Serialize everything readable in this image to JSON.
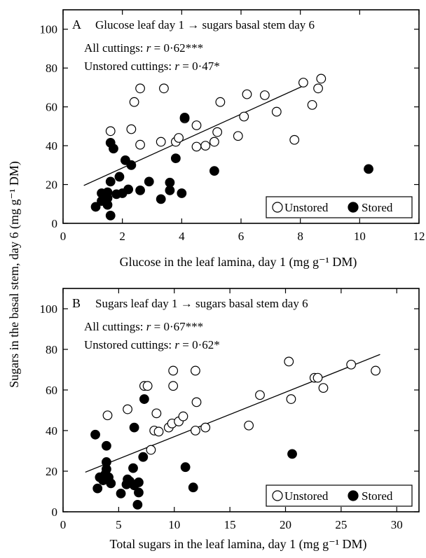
{
  "ylabel": "Sugars in the basal stem, day 6 (mg g⁻¹ DM)",
  "legend": {
    "unstored": "Unstored",
    "stored": "Stored"
  },
  "chart_data": [
    {
      "type": "scatter",
      "panel": "A",
      "title": "Glucose leaf day 1 → sugars basal stem day 6",
      "annotations": [
        "All cuttings: r = 0·62***",
        "Unstored cuttings: r = 0·47*"
      ],
      "xlabel": "Glucose in the leaf lamina, day 1 (mg g⁻¹ DM)",
      "xlim": [
        0,
        12
      ],
      "ylim": [
        0,
        110
      ],
      "xticks": [
        0,
        2,
        4,
        6,
        8,
        10,
        12
      ],
      "yticks": [
        0,
        20,
        40,
        60,
        80,
        100
      ],
      "legend_position": "bottom-right",
      "fit_line": {
        "x": [
          0.7,
          8.2
        ],
        "y": [
          19.5,
          71.5
        ]
      },
      "series": [
        {
          "name": "Unstored",
          "marker": "open-circle",
          "points": [
            [
              1.6,
              47.5
            ],
            [
              2.3,
              48.5
            ],
            [
              2.4,
              62.5
            ],
            [
              2.6,
              69.5
            ],
            [
              2.6,
              40.5
            ],
            [
              3.3,
              42
            ],
            [
              3.4,
              69.5
            ],
            [
              3.8,
              42
            ],
            [
              3.9,
              44
            ],
            [
              4.1,
              54
            ],
            [
              4.5,
              50.5
            ],
            [
              4.5,
              39.5
            ],
            [
              4.8,
              40
            ],
            [
              5.1,
              42
            ],
            [
              5.2,
              47
            ],
            [
              5.3,
              62.5
            ],
            [
              5.9,
              45
            ],
            [
              6.1,
              55
            ],
            [
              6.2,
              66.5
            ],
            [
              6.8,
              66
            ],
            [
              7.2,
              57.5
            ],
            [
              7.8,
              43
            ],
            [
              8.1,
              72.5
            ],
            [
              8.4,
              61
            ],
            [
              8.6,
              69.5
            ],
            [
              8.7,
              74.5
            ]
          ]
        },
        {
          "name": "Stored",
          "marker": "filled-circle",
          "points": [
            [
              1.1,
              8.5
            ],
            [
              1.3,
              11.5
            ],
            [
              1.3,
              15.5
            ],
            [
              1.4,
              14.5
            ],
            [
              1.5,
              13
            ],
            [
              1.5,
              9.5
            ],
            [
              1.5,
              16
            ],
            [
              1.6,
              21.5
            ],
            [
              1.6,
              4
            ],
            [
              1.6,
              41.5
            ],
            [
              1.7,
              38.5
            ],
            [
              1.8,
              15
            ],
            [
              1.9,
              24
            ],
            [
              2.0,
              15.5
            ],
            [
              2.1,
              32.5
            ],
            [
              2.2,
              17.5
            ],
            [
              2.3,
              30
            ],
            [
              2.6,
              17
            ],
            [
              2.9,
              21.5
            ],
            [
              3.3,
              12.5
            ],
            [
              3.6,
              21
            ],
            [
              3.6,
              17
            ],
            [
              3.8,
              33.5
            ],
            [
              4.0,
              15.5
            ],
            [
              4.1,
              54.5
            ],
            [
              5.1,
              27
            ],
            [
              10.3,
              28
            ]
          ]
        }
      ]
    },
    {
      "type": "scatter",
      "panel": "B",
      "title": "Sugars leaf day 1 → sugars basal stem day 6",
      "annotations": [
        "All cuttings: r = 0·67***",
        "Unstored cuttings: r = 0·62*"
      ],
      "xlabel": "Total sugars in the leaf lamina, day 1 (mg g⁻¹ DM)",
      "xlim": [
        0,
        32
      ],
      "ylim": [
        0,
        110
      ],
      "xticks": [
        0,
        5,
        10,
        15,
        20,
        25,
        30
      ],
      "yticks": [
        0,
        20,
        40,
        60,
        80,
        100
      ],
      "legend_position": "bottom-right",
      "fit_line": {
        "x": [
          2.0,
          28.5
        ],
        "y": [
          19.5,
          77.5
        ]
      },
      "series": [
        {
          "name": "Unstored",
          "marker": "open-circle",
          "points": [
            [
              4.0,
              47.5
            ],
            [
              5.8,
              50.5
            ],
            [
              7.3,
              62
            ],
            [
              7.6,
              62
            ],
            [
              7.9,
              30.5
            ],
            [
              8.2,
              40
            ],
            [
              8.4,
              48.5
            ],
            [
              8.6,
              39.5
            ],
            [
              9.5,
              41.5
            ],
            [
              9.8,
              43.5
            ],
            [
              9.9,
              62
            ],
            [
              9.9,
              69.5
            ],
            [
              10.4,
              44.5
            ],
            [
              10.8,
              47
            ],
            [
              11.9,
              40
            ],
            [
              11.9,
              69.5
            ],
            [
              12.0,
              54
            ],
            [
              12.8,
              41.5
            ],
            [
              16.7,
              42.5
            ],
            [
              17.7,
              57.5
            ],
            [
              20.3,
              74
            ],
            [
              20.5,
              55.5
            ],
            [
              22.6,
              66
            ],
            [
              22.9,
              66
            ],
            [
              23.4,
              61
            ],
            [
              25.9,
              72.5
            ],
            [
              28.1,
              69.5
            ]
          ]
        },
        {
          "name": "Stored",
          "marker": "filled-circle",
          "points": [
            [
              2.9,
              38
            ],
            [
              3.1,
              11.5
            ],
            [
              3.3,
              17
            ],
            [
              3.6,
              15.5
            ],
            [
              3.8,
              18.5
            ],
            [
              3.9,
              24.5
            ],
            [
              3.9,
              21
            ],
            [
              3.9,
              32.5
            ],
            [
              4.1,
              17
            ],
            [
              4.3,
              14
            ],
            [
              5.2,
              9
            ],
            [
              5.7,
              13.5
            ],
            [
              5.8,
              16
            ],
            [
              6.0,
              15
            ],
            [
              6.3,
              21.5
            ],
            [
              6.4,
              13
            ],
            [
              6.4,
              41.5
            ],
            [
              6.7,
              3.5
            ],
            [
              6.8,
              9.5
            ],
            [
              6.8,
              14.5
            ],
            [
              7.2,
              27
            ],
            [
              7.3,
              55.5
            ],
            [
              11.0,
              22
            ],
            [
              11.7,
              12
            ],
            [
              20.6,
              28.5
            ]
          ]
        }
      ]
    }
  ]
}
